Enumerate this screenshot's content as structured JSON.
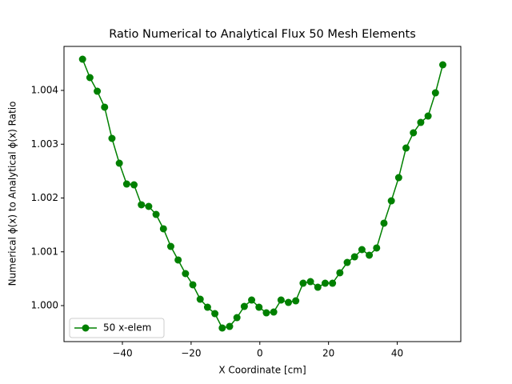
{
  "chart_data": {
    "type": "line",
    "title": "Ratio Numerical to Analytical Flux 50 Mesh Elements",
    "xlabel": "X Coordinate [cm]",
    "ylabel": "Numerical ϕ(x) to Analytical ϕ(x) Ratio",
    "x": [
      -51.6,
      -49.46,
      -47.32,
      -45.18,
      -43.04,
      -40.9,
      -38.76,
      -36.62,
      -34.48,
      -32.34,
      -30.2,
      -28.06,
      -25.92,
      -23.78,
      -21.64,
      -19.5,
      -17.36,
      -15.22,
      -13.08,
      -10.94,
      -8.8,
      -6.66,
      -4.52,
      -2.38,
      -0.24,
      1.9,
      4.04,
      6.18,
      8.32,
      10.46,
      12.6,
      14.74,
      16.88,
      19.02,
      21.16,
      23.3,
      25.44,
      27.58,
      29.72,
      31.86,
      34.0,
      36.14,
      38.28,
      40.42,
      42.56,
      44.7,
      46.84,
      48.98,
      51.12,
      53.26
    ],
    "series": [
      {
        "name": "50 x-elem",
        "color": "#008000",
        "values": [
          1.00458,
          1.004238,
          1.003985,
          1.003688,
          1.003108,
          1.002647,
          1.00226,
          1.002245,
          1.001874,
          1.001844,
          1.001695,
          1.001428,
          1.0011,
          1.000848,
          1.000595,
          1.000387,
          1.000119,
          0.99997,
          0.999851,
          0.999584,
          0.999613,
          0.999777,
          0.999985,
          1.000104,
          0.99997,
          0.999866,
          0.999881,
          1.000104,
          1.000059,
          1.000089,
          1.000416,
          1.000446,
          1.000342,
          1.000416,
          1.000416,
          1.00061,
          1.000803,
          1.000907,
          1.001041,
          1.000937,
          1.001071,
          1.001532,
          1.001948,
          1.002379,
          1.002929,
          1.003212,
          1.003405,
          1.003524,
          1.003955,
          1.004476
        ]
      }
    ],
    "xlim": [
      -57.0,
      58.5
    ],
    "xticks": [
      {
        "value": -40,
        "label": "−40"
      },
      {
        "value": -20,
        "label": "−20"
      },
      0,
      20,
      40
    ],
    "ylim": [
      0.999331,
      1.004818
    ],
    "yticks": [
      {
        "value": 1.0,
        "label": "1.000"
      },
      {
        "value": 1.001,
        "label": "1.001"
      },
      {
        "value": 1.002,
        "label": "1.002"
      },
      {
        "value": 1.003,
        "label": "1.003"
      },
      {
        "value": 1.004,
        "label": "1.004"
      }
    ],
    "legend": "lower left"
  }
}
